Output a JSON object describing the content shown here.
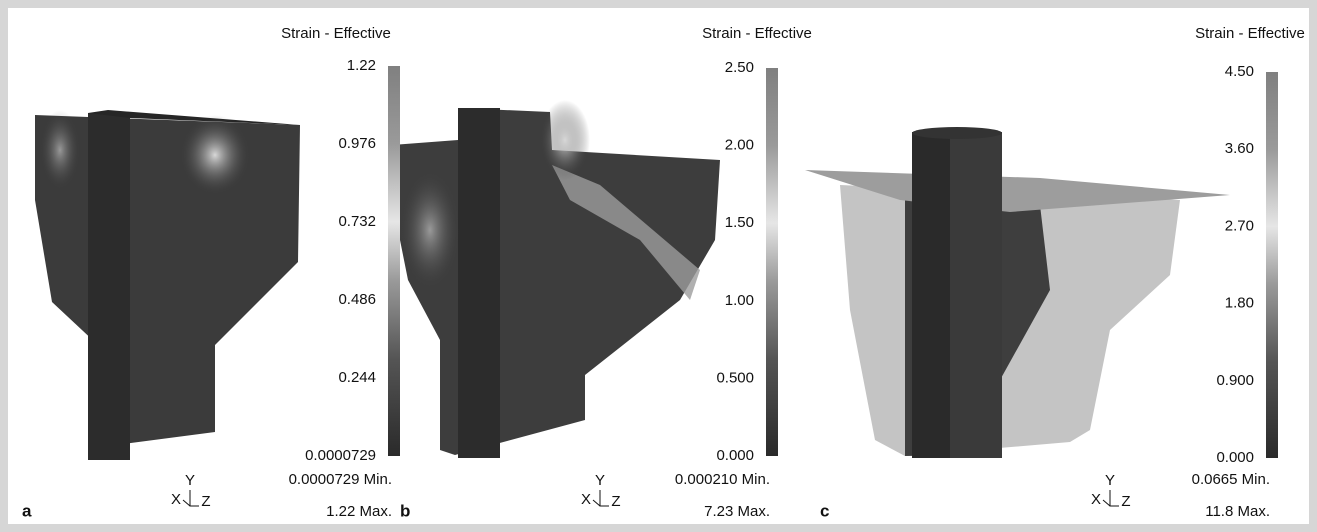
{
  "panels": [
    {
      "label": "a",
      "legend_title": "Strain - Effective",
      "ticks": [
        "1.22",
        "0.976",
        "0.732",
        "0.486",
        "0.244",
        "0.0000729"
      ],
      "min": "0.0000729 Min.",
      "max": "1.22 Max.",
      "triad": {
        "x": "X",
        "y": "Y",
        "z": "Z"
      }
    },
    {
      "label": "b",
      "legend_title": "Strain - Effective",
      "ticks": [
        "2.50",
        "2.00",
        "1.50",
        "1.00",
        "0.500",
        "0.000"
      ],
      "min": "0.000210 Min.",
      "max": "7.23 Max.",
      "triad": {
        "x": "X",
        "y": "Y",
        "z": "Z"
      }
    },
    {
      "label": "c",
      "legend_title": "Strain - Effective",
      "ticks": [
        "4.50",
        "3.60",
        "2.70",
        "1.80",
        "0.900",
        "0.000"
      ],
      "min": "0.0665 Min.",
      "max": "11.8 Max.",
      "triad": {
        "x": "X",
        "y": "Y",
        "z": "Z"
      }
    }
  ]
}
